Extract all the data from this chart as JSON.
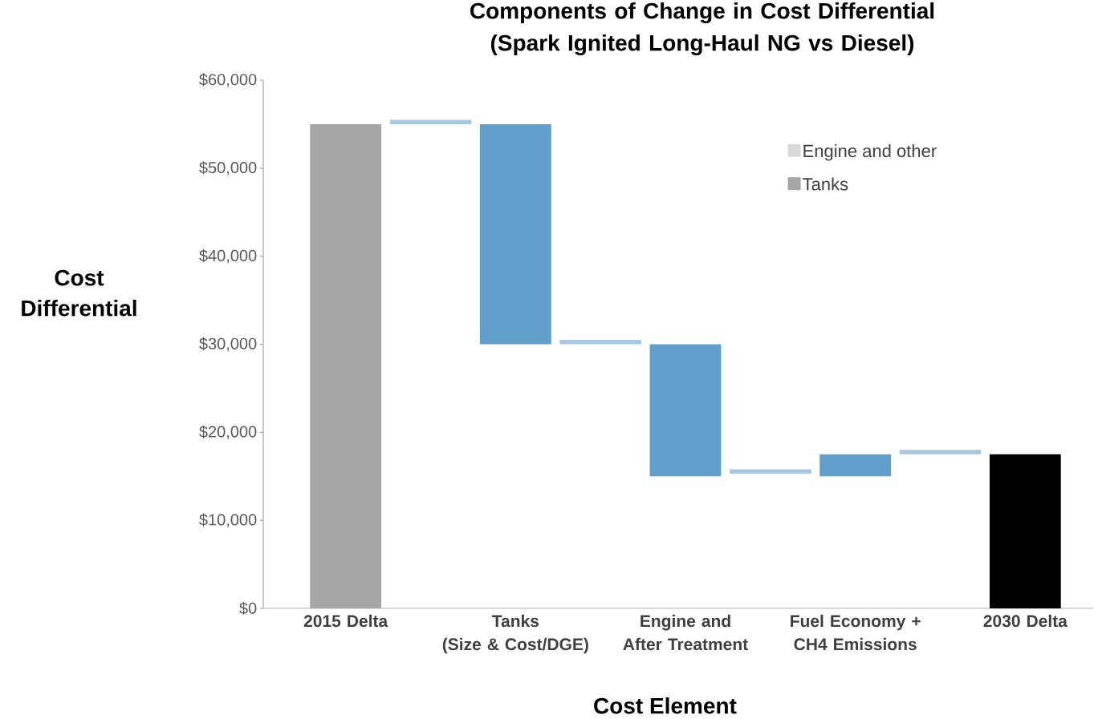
{
  "chart_data": {
    "type": "bar",
    "title": "Components of Change in Cost Differential (Spark Ignited Long-Haul NG vs Diesel)",
    "xlabel": "Cost Element",
    "ylabel": "Cost Differential",
    "categories": [
      "2015 Delta",
      null,
      "Tanks\n(Size & Cost/DGE)",
      null,
      "Engine and\nAfter Treatment",
      null,
      "Fuel Economy +\nCH4 Emissions",
      null,
      "2030 Delta"
    ],
    "series": [
      {
        "values": [
          55000,
          null,
          25000,
          null,
          15000,
          null,
          2500,
          null,
          17500
        ],
        "base": [
          0,
          null,
          30000,
          null,
          15000,
          null,
          15000,
          null,
          0
        ],
        "colors": [
          "#a6a6a6",
          null,
          "#62a0cb",
          null,
          "#62a0cb",
          null,
          "#62a0cb",
          null,
          "#000000"
        ]
      },
      {
        "values": [
          null,
          500,
          null,
          500,
          null,
          500,
          null,
          500,
          null
        ],
        "base": [
          null,
          55000,
          null,
          30000,
          null,
          15300,
          null,
          17500,
          null
        ],
        "color": "#a9c8e0"
      },
      {
        "name": "Engine and other",
        "color": "#d9d9d9",
        "values": [
          null,
          null,
          null,
          null,
          null,
          null,
          null,
          null,
          null
        ]
      },
      {
        "name": "Tanks",
        "color": "#a6a6a6",
        "values": [
          null,
          null,
          null,
          null,
          null,
          null,
          null,
          null,
          null
        ]
      }
    ],
    "ylim": [
      0,
      60000
    ],
    "yticks": [
      {
        "value": 0,
        "label": "$0"
      },
      {
        "value": 10000,
        "label": "$10,000"
      },
      {
        "value": 20000,
        "label": "$20,000"
      },
      {
        "value": 30000,
        "label": "$30,000"
      },
      {
        "value": 40000,
        "label": "$40,000"
      },
      {
        "value": 50000,
        "label": "$50,000"
      },
      {
        "value": 60000,
        "label": "$60,000"
      }
    ],
    "legend": "top right",
    "grid": false
  }
}
